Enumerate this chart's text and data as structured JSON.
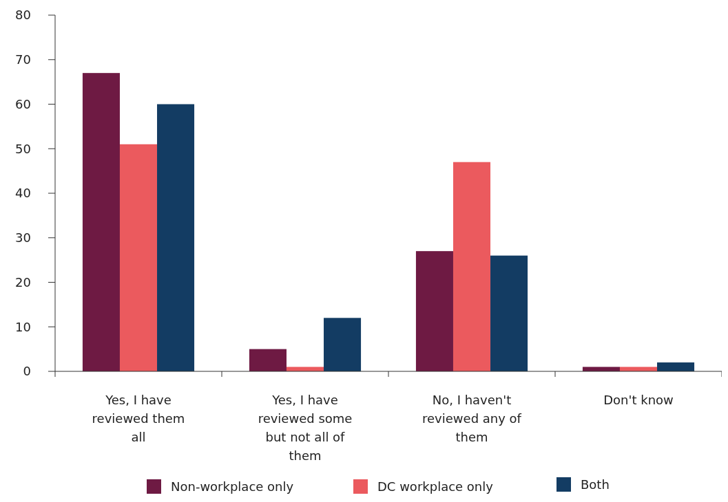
{
  "chart_data": {
    "type": "bar",
    "categories": [
      "Yes, I have reviewed them all",
      "Yes, I have reviewed some but not all of them",
      "No, I haven't reviewed any of them",
      "Don't know"
    ],
    "series": [
      {
        "name": "Non-workplace only",
        "color": "#6e1a43",
        "values": [
          67,
          5,
          27,
          1
        ]
      },
      {
        "name": "DC workplace only",
        "color": "#eb5a5e",
        "values": [
          51,
          1,
          47,
          1
        ]
      },
      {
        "name": "Both",
        "color": "#133c63",
        "values": [
          60,
          12,
          26,
          2
        ]
      }
    ],
    "ylim": [
      0,
      80
    ],
    "yticks": [
      0,
      10,
      20,
      30,
      40,
      50,
      60,
      70,
      80
    ],
    "grid": false,
    "legend": "bottom"
  }
}
